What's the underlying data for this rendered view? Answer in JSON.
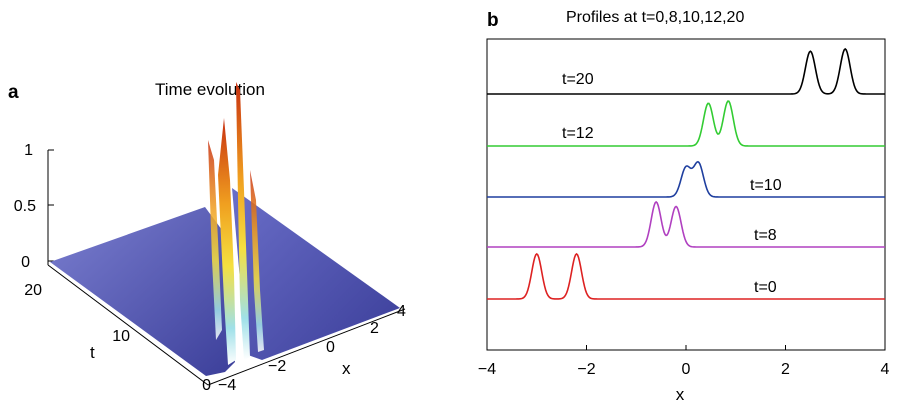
{
  "panel_a": {
    "letter": "a",
    "title": "Time evolution",
    "z_ticks": [
      "0",
      "0.5",
      "1"
    ],
    "t_ticks": [
      "0",
      "10",
      "20"
    ],
    "x_ticks": [
      "−4",
      "−2",
      "0",
      "2",
      "4"
    ],
    "t_label": "t",
    "x_label": "x"
  },
  "panel_b": {
    "letter": "b",
    "title": "Profiles at t=0,8,10,12,20",
    "x_ticks": [
      "−4",
      "−2",
      "0",
      "2",
      "4"
    ],
    "x_label": "x",
    "curve_labels": [
      "t=20",
      "t=12",
      "t=10",
      "t=8",
      "t=0"
    ]
  },
  "colors": {
    "surface": "#5a5eb8",
    "t20": "#000000",
    "t12": "#33cc33",
    "t10": "#1f3f9f",
    "t8": "#b040c0",
    "t0": "#dd2222"
  },
  "chart_data": [
    {
      "type": "area",
      "kind": "3d-surface",
      "title": "Time evolution",
      "xlabel": "x",
      "ylabel": "t",
      "xlim": [
        -4,
        4
      ],
      "ylim": [
        0,
        20
      ],
      "zlim": [
        0,
        1
      ],
      "description_series": [
        {
          "t": 0,
          "peaks_x": [
            -3.0,
            -2.2
          ]
        },
        {
          "t": 20,
          "peaks_x": [
            2.5,
            3.2
          ]
        }
      ]
    },
    {
      "type": "line",
      "title": "Profiles at t=0,8,10,12,20",
      "xlabel": "x",
      "xlim": [
        -4,
        4
      ],
      "series": [
        {
          "name": "t=0",
          "peaks": [
            {
              "x": -3.0,
              "h": 1.0
            },
            {
              "x": -2.2,
              "h": 1.0
            }
          ]
        },
        {
          "name": "t=8",
          "peaks": [
            {
              "x": -0.6,
              "h": 1.0
            },
            {
              "x": -0.2,
              "h": 0.9
            }
          ]
        },
        {
          "name": "t=10",
          "peaks": [
            {
              "x": 0.0,
              "h": 0.65
            },
            {
              "x": 0.25,
              "h": 0.75
            }
          ]
        },
        {
          "name": "t=12",
          "peaks": [
            {
              "x": 0.45,
              "h": 0.95
            },
            {
              "x": 0.85,
              "h": 1.0
            }
          ]
        },
        {
          "name": "t=20",
          "peaks": [
            {
              "x": 2.5,
              "h": 0.95
            },
            {
              "x": 3.2,
              "h": 1.0
            }
          ]
        }
      ]
    }
  ]
}
